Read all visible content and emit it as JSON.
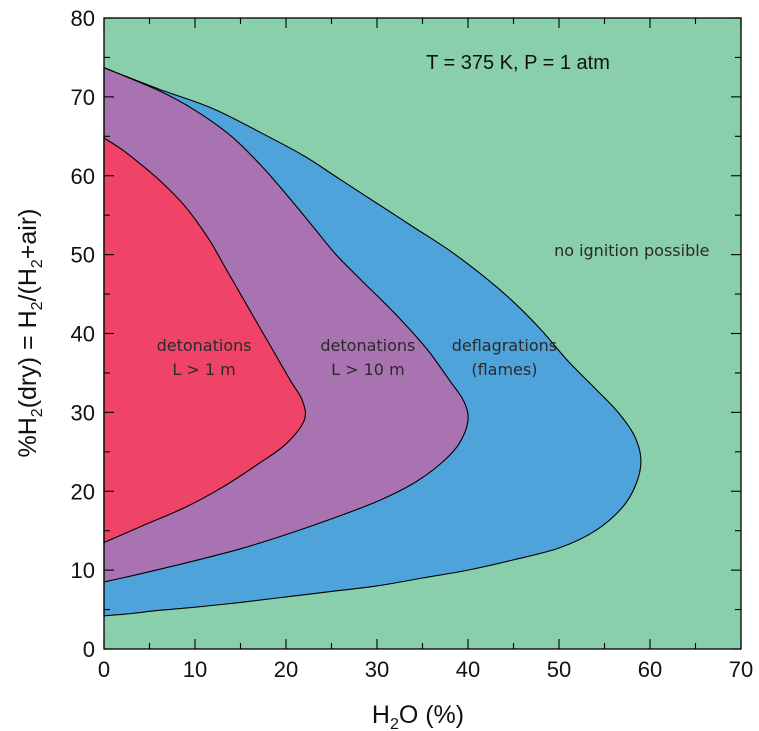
{
  "chart_data": {
    "type": "area",
    "title": "",
    "xlabel": {
      "main": "H",
      "sub": "2",
      "rest": "O (%)"
    },
    "ylabel": {
      "p1": "%H",
      "s1": "2",
      "p2": "(dry) = H",
      "s2": "2",
      "p3": "/(H",
      "s3": "2",
      "p4": "+air)"
    },
    "xlim": [
      0,
      70
    ],
    "ylim": [
      0,
      80
    ],
    "x_ticks": [
      0,
      10,
      20,
      30,
      40,
      50,
      60,
      70
    ],
    "y_ticks": [
      0,
      10,
      20,
      30,
      40,
      50,
      60,
      70,
      80
    ],
    "grid": false,
    "annotation": "T = 375 K, P = 1 atm",
    "background_color": "#8acfab",
    "regions": [
      {
        "label_lines": [
          "deflagrations",
          "(flames)"
        ],
        "label_at": [
          44,
          37.8
        ],
        "color": "#4ea3db",
        "boundary": [
          [
            0,
            4.2
          ],
          [
            3,
            4.5
          ],
          [
            6,
            4.9
          ],
          [
            10,
            5.3
          ],
          [
            15,
            5.9
          ],
          [
            20,
            6.6
          ],
          [
            25,
            7.3
          ],
          [
            30,
            8.0
          ],
          [
            35,
            9.0
          ],
          [
            40,
            10.0
          ],
          [
            45,
            11.3
          ],
          [
            50,
            12.8
          ],
          [
            54,
            15.0
          ],
          [
            57,
            18.0
          ],
          [
            58.5,
            21.0
          ],
          [
            59,
            24.0
          ],
          [
            58.3,
            27.0
          ],
          [
            56.5,
            30.0
          ],
          [
            54,
            33.0
          ],
          [
            51,
            36.5
          ],
          [
            48,
            40.5
          ],
          [
            45,
            44.0
          ],
          [
            42,
            47.0
          ],
          [
            38,
            50.5
          ],
          [
            34,
            53.5
          ],
          [
            30,
            56.5
          ],
          [
            26,
            59.5
          ],
          [
            22,
            62.5
          ],
          [
            18,
            65.0
          ],
          [
            12,
            68.5
          ],
          [
            6,
            71.0
          ],
          [
            0,
            73.7
          ]
        ]
      },
      {
        "label_lines": [
          "detonations",
          "L > 10 m"
        ],
        "label_at": [
          29,
          37.8
        ],
        "color": "#a973b1",
        "boundary": [
          [
            0,
            8.5
          ],
          [
            2,
            9.0
          ],
          [
            5,
            9.8
          ],
          [
            10,
            11.2
          ],
          [
            15,
            12.7
          ],
          [
            20,
            14.5
          ],
          [
            25,
            16.5
          ],
          [
            30,
            18.7
          ],
          [
            34,
            21.0
          ],
          [
            37,
            23.5
          ],
          [
            39,
            26.0
          ],
          [
            40,
            29.0
          ],
          [
            39.5,
            31.5
          ],
          [
            38,
            34.0
          ],
          [
            35.5,
            38.0
          ],
          [
            32,
            42.5
          ],
          [
            28.5,
            46.5
          ],
          [
            25.5,
            50.0
          ],
          [
            23,
            53.5
          ],
          [
            20.5,
            57.0
          ],
          [
            17.5,
            61.0
          ],
          [
            14,
            65.0
          ],
          [
            10,
            68.3
          ],
          [
            6,
            70.8
          ],
          [
            0,
            73.7
          ]
        ]
      },
      {
        "label_lines": [
          "detonations",
          "L > 1 m"
        ],
        "label_at": [
          11,
          37.8
        ],
        "color": "#ef4467",
        "boundary": [
          [
            0,
            13.5
          ],
          [
            2,
            14.5
          ],
          [
            5,
            16.0
          ],
          [
            9,
            18.0
          ],
          [
            13,
            20.5
          ],
          [
            17,
            23.5
          ],
          [
            20,
            26.0
          ],
          [
            22,
            29.0
          ],
          [
            21.8,
            31.5
          ],
          [
            20.5,
            34.0
          ],
          [
            18.5,
            38.0
          ],
          [
            16.5,
            42.0
          ],
          [
            15,
            45.0
          ],
          [
            13.5,
            48.0
          ],
          [
            11.5,
            52.0
          ],
          [
            9,
            56.0
          ],
          [
            6.5,
            59.0
          ],
          [
            4,
            61.5
          ],
          [
            2,
            63.3
          ],
          [
            0,
            64.8
          ]
        ]
      }
    ],
    "outer_region_label": "no ignition possible",
    "outer_label_at": [
      58,
      49.8
    ]
  }
}
